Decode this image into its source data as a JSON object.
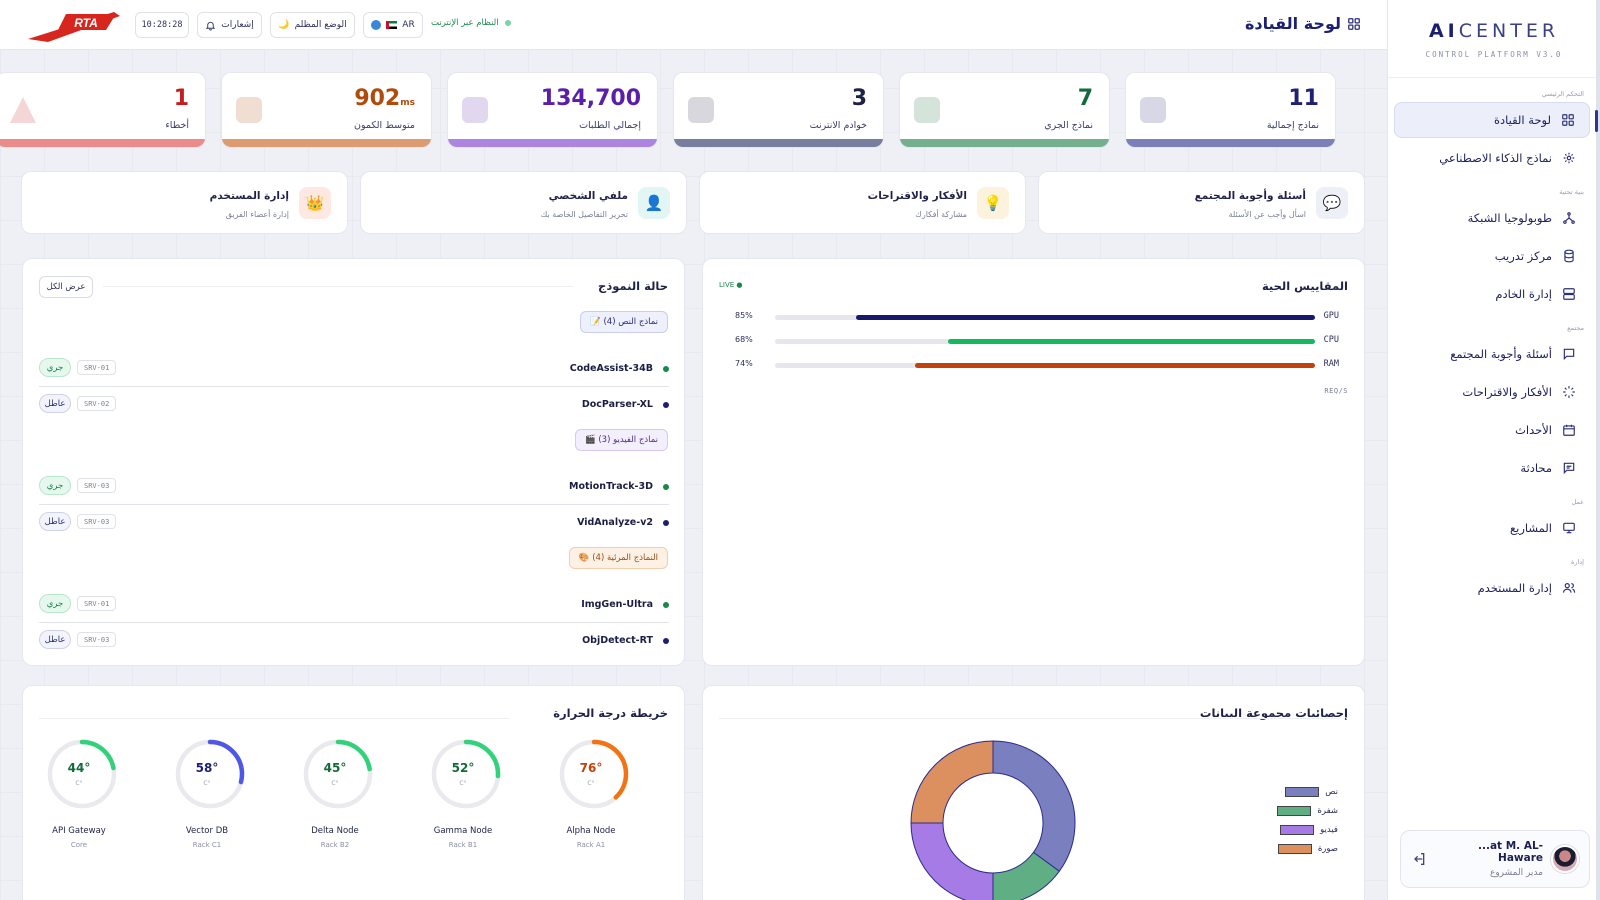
{
  "header": {
    "page_title": "لوحة القيادة",
    "logo_text": "RTA",
    "clock": "10:28:28",
    "notifications_label": "إشعارات",
    "dark_mode_label": "الوضع المظلم",
    "language": "AR",
    "system_status": "النظام عبر الإنترنت"
  },
  "sidebar": {
    "brand_ai": "AI",
    "brand_rest": "CENTER",
    "brand_sub": "CONTROL PLATFORM V3.0",
    "sections": {
      "main": "التحكم الرئيسي",
      "infra": "بنية تحتية",
      "community": "مجتمع",
      "work": "عمل",
      "admin": "إدارة"
    },
    "items": {
      "dashboard": "لوحة القيادة",
      "ai_models": "نماذج الذكاء الاصطناعي",
      "topology": "طوبولوجيا الشبكة",
      "training": "مركز تدريب",
      "servers": "إدارة الخادم",
      "qa": "أسئلة وأجوبة المجتمع",
      "ideas": "الأفكار والاقتراحات",
      "events": "الأحداث",
      "chat": "محادثة",
      "projects": "المشاريع",
      "users": "إدارة المستخدم"
    },
    "user": {
      "name": "...at M. AL-Haware",
      "role": "مدير المشروع"
    }
  },
  "stats": [
    {
      "value": "11",
      "unit": "",
      "label": "نماذج إجمالية",
      "color": "#1f2272",
      "bar": "#7b80b8"
    },
    {
      "value": "7",
      "unit": "",
      "label": "نماذج الجري",
      "color": "#116b3a",
      "bar": "#74b08e"
    },
    {
      "value": "3",
      "unit": "",
      "label": "خوادم الانترنت",
      "color": "#1f2145",
      "bar": "#7a7e9e"
    },
    {
      "value": "134,700",
      "unit": "",
      "label": "إجمالي الطلبات",
      "color": "#5a1fa8",
      "bar": "#ac85e0"
    },
    {
      "value": "902",
      "unit": "ms",
      "label": "متوسط الكمون",
      "color": "#b04a0d",
      "bar": "#dd9b71"
    },
    {
      "value": "1",
      "unit": "",
      "label": "أخطاء",
      "color": "#c51d1d",
      "bar": "#ec8b8b"
    }
  ],
  "quick_links": [
    {
      "title": "أسئلة وأجوبة المجتمع",
      "subtitle": "اسأل وأجب عن الأسئلة",
      "icon": "💬",
      "bg": "#eef0f8"
    },
    {
      "title": "الأفكار والاقتراحات",
      "subtitle": "مشاركة أفكارك",
      "icon": "💡",
      "bg": "#fdf3dc"
    },
    {
      "title": "ملفي الشخصي",
      "subtitle": "تحرير التفاصيل الخاصة بك",
      "icon": "👤",
      "bg": "#e3f6f3"
    },
    {
      "title": "إدارة المستخدم",
      "subtitle": "إدارة أعضاء الفريق",
      "icon": "👑",
      "bg": "#fde9e2"
    }
  ],
  "live_metrics": {
    "title": "المقاييس الحية",
    "live_label": "LIVE ●",
    "rows": [
      {
        "name": "GPU",
        "percent": 85,
        "label": "85%",
        "color": "#18196b"
      },
      {
        "name": "CPU",
        "percent": 68,
        "label": "68%",
        "color": "#14b85f"
      },
      {
        "name": "RAM",
        "percent": 74,
        "label": "74%",
        "color": "#c2410c"
      }
    ],
    "reqs_label": "REQ/S"
  },
  "model_status": {
    "title": "حالة النموذج",
    "view_all": "عرض الكل",
    "groups": [
      {
        "label": "📝 نماذج النص (4)",
        "bg": "#eef0fb",
        "border": "#c9cdef",
        "color": "#25297a",
        "models": [
          {
            "name": "CodeAssist-34B",
            "server": "SRV-01",
            "status": "جري",
            "running": true
          },
          {
            "name": "DocParser-XL",
            "server": "SRV-02",
            "status": "عاطل",
            "running": false
          }
        ]
      },
      {
        "label": "🎬 نماذج الفيديو (3)",
        "bg": "#f4effd",
        "border": "#d8c8f4",
        "color": "#4b2b8a",
        "models": [
          {
            "name": "MotionTrack-3D",
            "server": "SRV-03",
            "status": "جري",
            "running": true
          },
          {
            "name": "VidAnalyze-v2",
            "server": "SRV-03",
            "status": "عاطل",
            "running": false
          }
        ]
      },
      {
        "label": "🎨 النماذج المرئية (4)",
        "bg": "#fdf1e6",
        "border": "#f1cda9",
        "color": "#9a4b10",
        "models": [
          {
            "name": "ImgGen-Ultra",
            "server": "SRV-01",
            "status": "جري",
            "running": true
          },
          {
            "name": "ObjDetect-RT",
            "server": "SRV-03",
            "status": "عاطل",
            "running": false
          }
        ]
      }
    ]
  },
  "dataset_stats": {
    "title": "إحصائيات مجموعة البيانات",
    "chart_data": {
      "type": "pie",
      "donut": true,
      "categories": [
        "نص",
        "شفرة",
        "فيديو",
        "صورة"
      ],
      "values": [
        35,
        15,
        25,
        25
      ],
      "colors": [
        "#7a7fc0",
        "#5fae84",
        "#a77be6",
        "#dc9060"
      ],
      "legend_position": "right"
    }
  },
  "temperature_map": {
    "title": "خريطة درجة الحرارة",
    "unit": "C°",
    "nodes": [
      {
        "name": "Alpha Node",
        "rack": "Rack A1",
        "value": 76,
        "label": "76°",
        "color": "#f47216",
        "text": "#c2410c"
      },
      {
        "name": "Gamma Node",
        "rack": "Rack B1",
        "value": 52,
        "label": "52°",
        "color": "#32d27a",
        "text": "#116b3a"
      },
      {
        "name": "Delta Node",
        "rack": "Rack B2",
        "value": 45,
        "label": "45°",
        "color": "#32d27a",
        "text": "#116b3a"
      },
      {
        "name": "Vector DB",
        "rack": "Rack C1",
        "value": 58,
        "label": "58°",
        "color": "#4f57e8",
        "text": "#1f2272"
      },
      {
        "name": "API Gateway",
        "rack": "Core",
        "value": 44,
        "label": "44°",
        "color": "#32d27a",
        "text": "#116b3a"
      }
    ]
  }
}
